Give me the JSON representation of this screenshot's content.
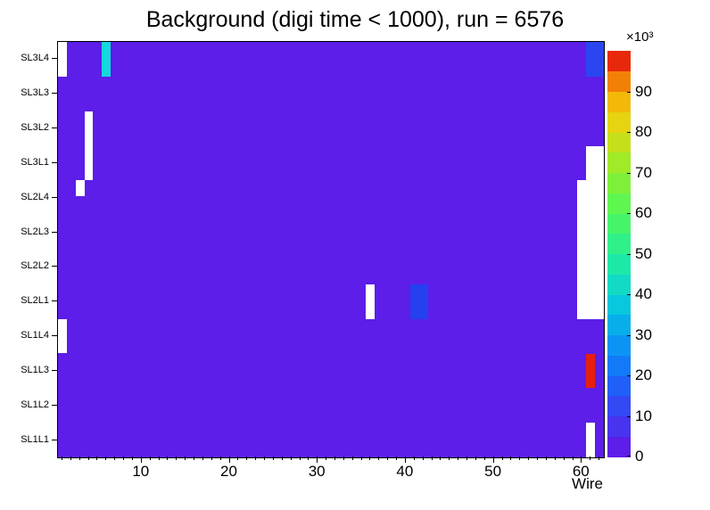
{
  "title": "Background (digi time < 1000), run = 6576",
  "chart_data": {
    "type": "heatmap",
    "title": "Background (digi time < 1000), run = 6576",
    "xlabel": "Wire",
    "x_min": 0.5,
    "x_max": 62.5,
    "x_major_ticks": [
      10,
      20,
      30,
      40,
      50,
      60
    ],
    "rows_top_to_bottom": [
      "SL3L4",
      "SL3L3",
      "SL3L2",
      "SL3L1",
      "SL2L4",
      "SL2L3",
      "SL2L2",
      "SL2L1",
      "SL1L4",
      "SL1L3",
      "SL1L2",
      "SL1L1"
    ],
    "background": {
      "value_k": 2,
      "color": "#5c1ee8"
    },
    "empty_color": "#ffffff",
    "colorbar": {
      "exponent_label": "×10³",
      "tick_values_k": [
        0,
        10,
        20,
        30,
        40,
        50,
        60,
        70,
        80,
        90
      ],
      "value_min_k": 0,
      "value_max_k": 100,
      "palette_bottom_to_top": [
        "#5c1ee8",
        "#4834ee",
        "#3448f4",
        "#2060f8",
        "#127af8",
        "#0c94f4",
        "#08aeea",
        "#08c8de",
        "#12dac4",
        "#1ee8a8",
        "#30f08a",
        "#46f46a",
        "#60f650",
        "#7ef03a",
        "#a0ea28",
        "#c4e01a",
        "#e6d410",
        "#f2b80a",
        "#f28006",
        "#e8280a"
      ]
    },
    "cells": [
      {
        "layer": "SL3L4",
        "wire_start": 1,
        "wire_end": 1,
        "value_k": 0,
        "color": "#ffffff",
        "note": "empty"
      },
      {
        "layer": "SL3L4",
        "wire_start": 6,
        "wire_end": 6,
        "value_k": 33,
        "color": "#14d8dc"
      },
      {
        "layer": "SL3L4",
        "wire_start": 61,
        "wire_end": 62,
        "value_k": 13,
        "color": "#2b46f0"
      },
      {
        "layer": "SL3L2",
        "wire_start": 4,
        "wire_end": 4,
        "row_span": 2,
        "value_k": 0,
        "color": "#ffffff",
        "note": "empty"
      },
      {
        "layer": "SL2L4",
        "wire_start": 3,
        "wire_end": 3,
        "h_frac": 0.45,
        "value_k": 0,
        "color": "#ffffff",
        "note": "empty"
      },
      {
        "layer": "SL3L1",
        "wire_start": 61,
        "wire_end": 62,
        "value_k": 0,
        "color": "#ffffff",
        "note": "empty"
      },
      {
        "layer": "SL2L4",
        "wire_start": 60,
        "wire_end": 62,
        "row_span": 4,
        "value_k": 0,
        "color": "#ffffff",
        "note": "empty"
      },
      {
        "layer": "SL2L1",
        "wire_start": 36,
        "wire_end": 36,
        "value_k": 0,
        "color": "#ffffff",
        "note": "empty"
      },
      {
        "layer": "SL2L1",
        "wire_start": 41,
        "wire_end": 42,
        "value_k": 12,
        "color": "#2440f0"
      },
      {
        "layer": "SL1L4",
        "wire_start": 1,
        "wire_end": 1,
        "value_k": 0,
        "color": "#ffffff",
        "note": "empty"
      },
      {
        "layer": "SL1L3",
        "wire_start": 61,
        "wire_end": 61,
        "value_k": 97,
        "color": "#e81e0c"
      },
      {
        "layer": "SL1L1",
        "wire_start": 61,
        "wire_end": 61,
        "value_k": 0,
        "color": "#ffffff",
        "note": "empty"
      }
    ]
  }
}
